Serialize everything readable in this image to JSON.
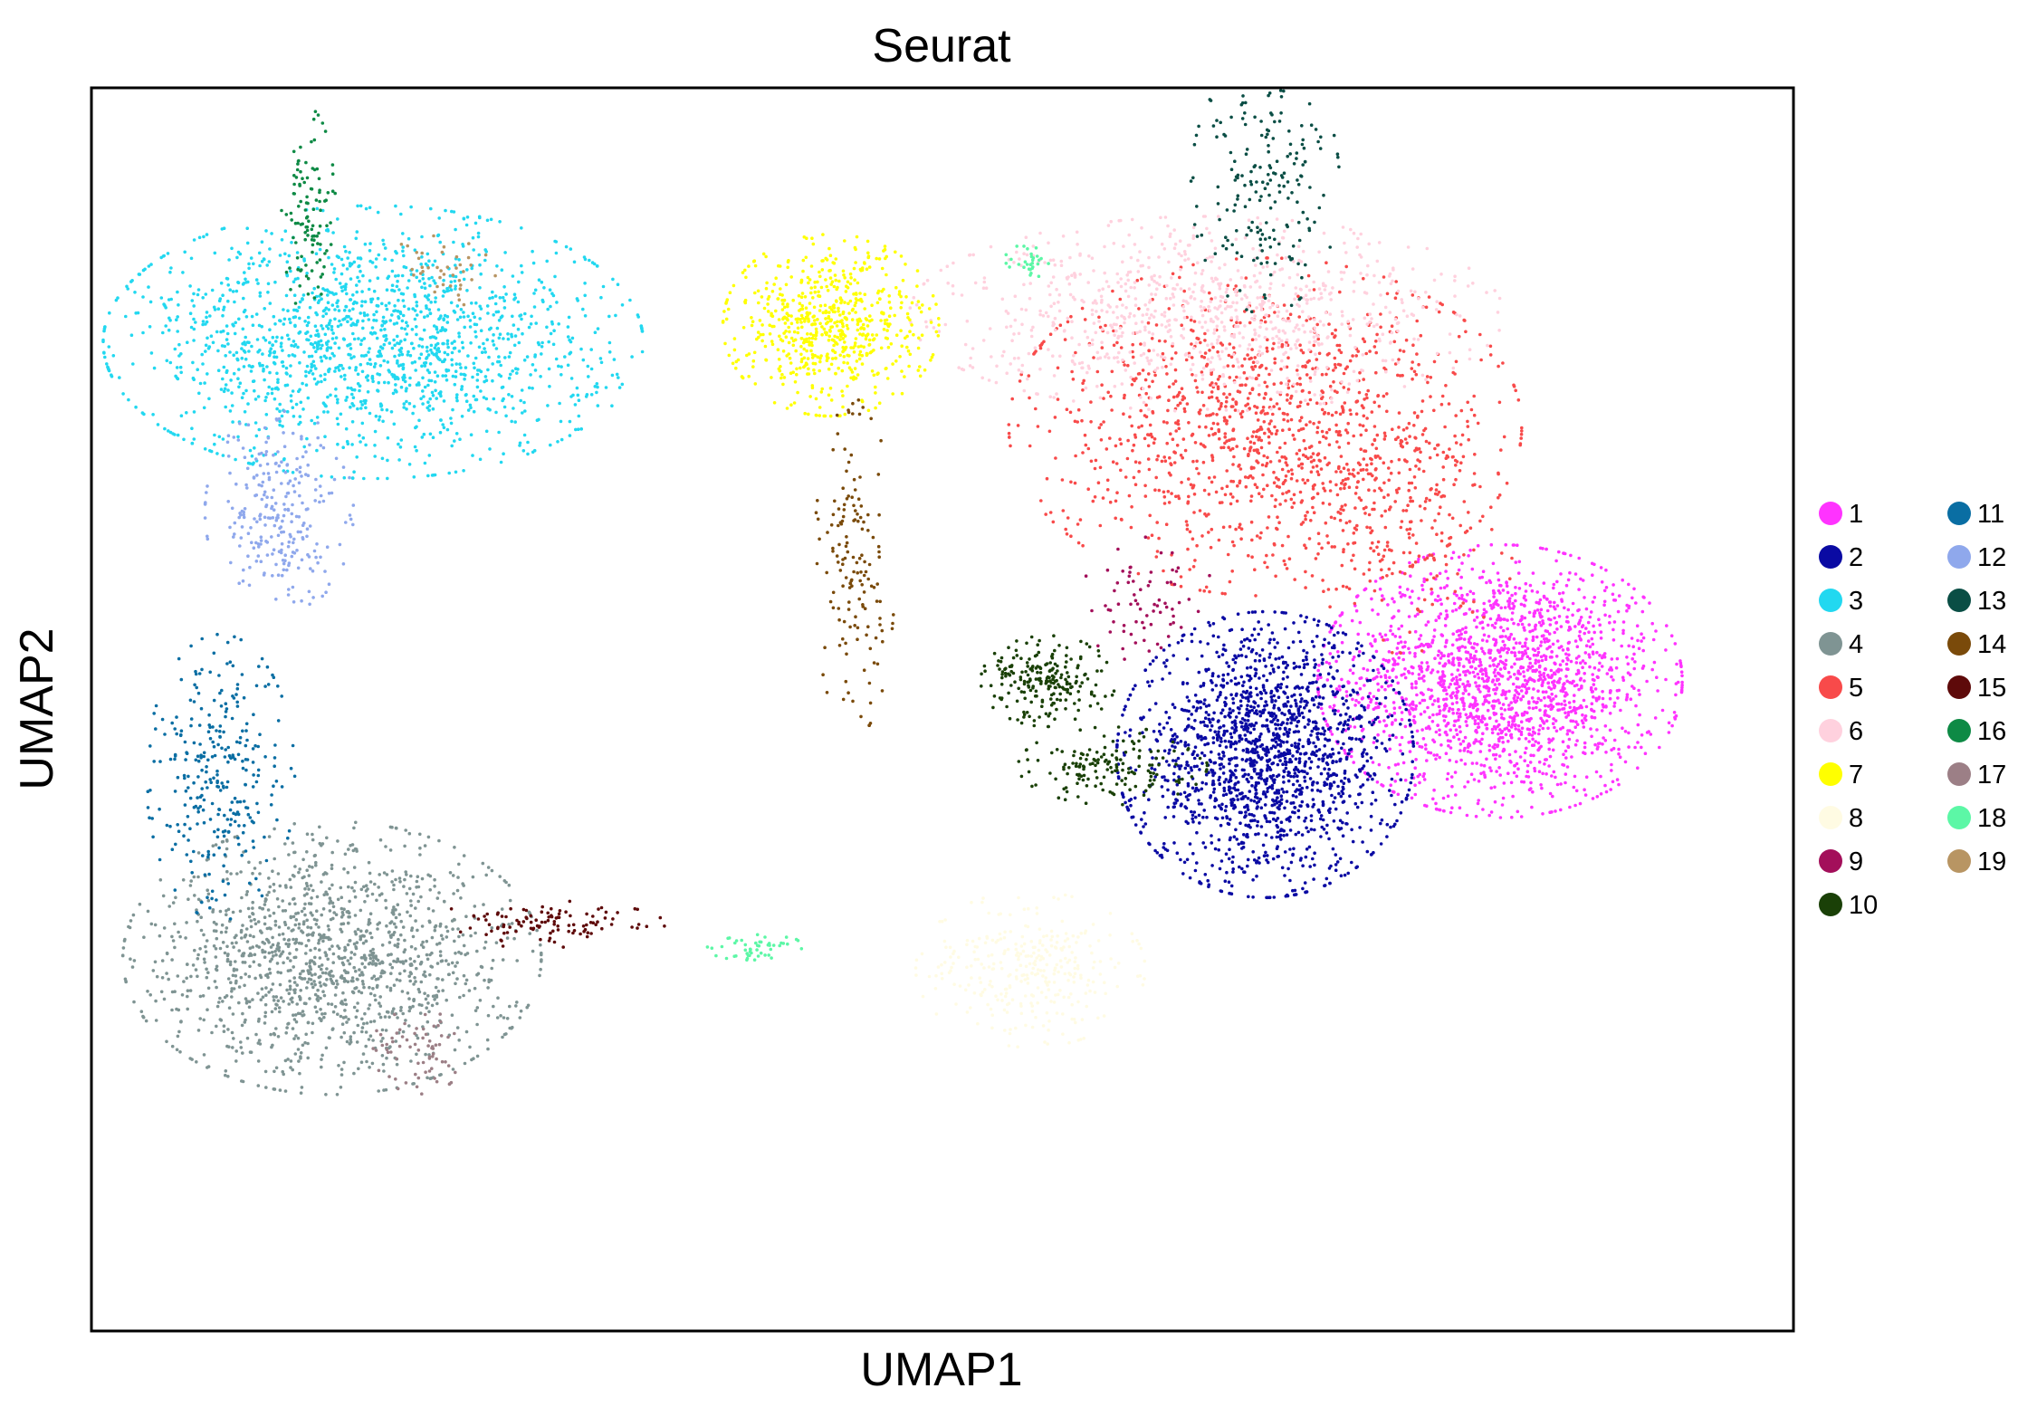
{
  "chart_data": {
    "type": "scatter",
    "title": "Seurat",
    "xlabel": "UMAP1",
    "ylabel": "UMAP2",
    "xlim": [
      -8,
      21
    ],
    "ylim": [
      -4,
      18
    ],
    "grid": false,
    "ticks": false,
    "legend_placement": "right, two columns",
    "series": [
      {
        "name": "1",
        "color": "#ff33ff",
        "clusters": [
          {
            "x": 16.0,
            "y": 7.5,
            "sx": 1.35,
            "sy": 1.05,
            "n": 1900
          }
        ]
      },
      {
        "name": "2",
        "color": "#0a0aa3",
        "clusters": [
          {
            "x": 12.0,
            "y": 6.2,
            "sx": 1.1,
            "sy": 1.1,
            "n": 1700
          }
        ]
      },
      {
        "name": "3",
        "color": "#22d8f0",
        "clusters": [
          {
            "x": -3.2,
            "y": 13.5,
            "sx": 2.0,
            "sy": 1.05,
            "n": 1600
          }
        ]
      },
      {
        "name": "4",
        "color": "#7f9493",
        "clusters": [
          {
            "x": -3.9,
            "y": 2.6,
            "sx": 1.55,
            "sy": 1.05,
            "n": 1400
          }
        ]
      },
      {
        "name": "5",
        "color": "#f84a4a",
        "clusters": [
          {
            "x": 12.0,
            "y": 12.0,
            "sx": 1.9,
            "sy": 1.3,
            "n": 1250
          },
          {
            "x": 14.3,
            "y": 10.3,
            "sx": 0.9,
            "sy": 1.0,
            "n": 200
          }
        ]
      },
      {
        "name": "6",
        "color": "#ffd1de",
        "clusters": [
          {
            "x": 11.0,
            "y": 14.0,
            "sx": 2.2,
            "sy": 0.75,
            "n": 850
          }
        ]
      },
      {
        "name": "7",
        "color": "#ffff00",
        "clusters": [
          {
            "x": 4.6,
            "y": 13.8,
            "sx": 0.8,
            "sy": 0.7,
            "n": 650
          }
        ]
      },
      {
        "name": "8",
        "color": "#fffbe3",
        "clusters": [
          {
            "x": 8.0,
            "y": 2.4,
            "sx": 0.85,
            "sy": 0.6,
            "n": 320
          }
        ]
      },
      {
        "name": "9",
        "color": "#a30f5a",
        "clusters": [
          {
            "x": 10.0,
            "y": 8.9,
            "sx": 0.5,
            "sy": 0.5,
            "n": 70
          }
        ]
      },
      {
        "name": "10",
        "color": "#1a4007",
        "clusters": [
          {
            "x": 8.3,
            "y": 7.5,
            "sx": 0.5,
            "sy": 0.35,
            "n": 220
          },
          {
            "x": 9.4,
            "y": 6.0,
            "sx": 0.7,
            "sy": 0.3,
            "n": 160
          }
        ]
      },
      {
        "name": "11",
        "color": "#0a6ea3",
        "clusters": [
          {
            "x": -5.8,
            "y": 5.8,
            "sx": 0.55,
            "sy": 1.1,
            "n": 300
          }
        ]
      },
      {
        "name": "12",
        "color": "#8fa8ec",
        "clusters": [
          {
            "x": -4.8,
            "y": 10.5,
            "sx": 0.55,
            "sy": 0.8,
            "n": 260
          }
        ]
      },
      {
        "name": "13",
        "color": "#0a4e45",
        "clusters": [
          {
            "x": 12.0,
            "y": 16.3,
            "sx": 0.55,
            "sy": 1.0,
            "n": 200
          }
        ]
      },
      {
        "name": "14",
        "color": "#7a4a0a",
        "clusters": [
          {
            "x": 5.0,
            "y": 9.5,
            "sx": 0.3,
            "sy": 1.3,
            "n": 150
          }
        ]
      },
      {
        "name": "15",
        "color": "#5e0a0a",
        "clusters": [
          {
            "x": -0.3,
            "y": 3.2,
            "sx": 0.9,
            "sy": 0.18,
            "n": 110
          }
        ]
      },
      {
        "name": "16",
        "color": "#0e8a45",
        "clusters": [
          {
            "x": -4.3,
            "y": 15.8,
            "sx": 0.2,
            "sy": 0.8,
            "n": 110
          }
        ]
      },
      {
        "name": "17",
        "color": "#9c7f86",
        "clusters": [
          {
            "x": -2.4,
            "y": 1.0,
            "sx": 0.35,
            "sy": 0.35,
            "n": 70
          }
        ]
      },
      {
        "name": "18",
        "color": "#5cf7a6",
        "clusters": [
          {
            "x": 3.3,
            "y": 2.8,
            "sx": 0.35,
            "sy": 0.12,
            "n": 50
          },
          {
            "x": 8.0,
            "y": 14.9,
            "sx": 0.2,
            "sy": 0.15,
            "n": 30
          }
        ]
      },
      {
        "name": "19",
        "color": "#b89563",
        "clusters": [
          {
            "x": -2.0,
            "y": 14.8,
            "sx": 0.4,
            "sy": 0.3,
            "n": 40
          }
        ]
      }
    ]
  }
}
